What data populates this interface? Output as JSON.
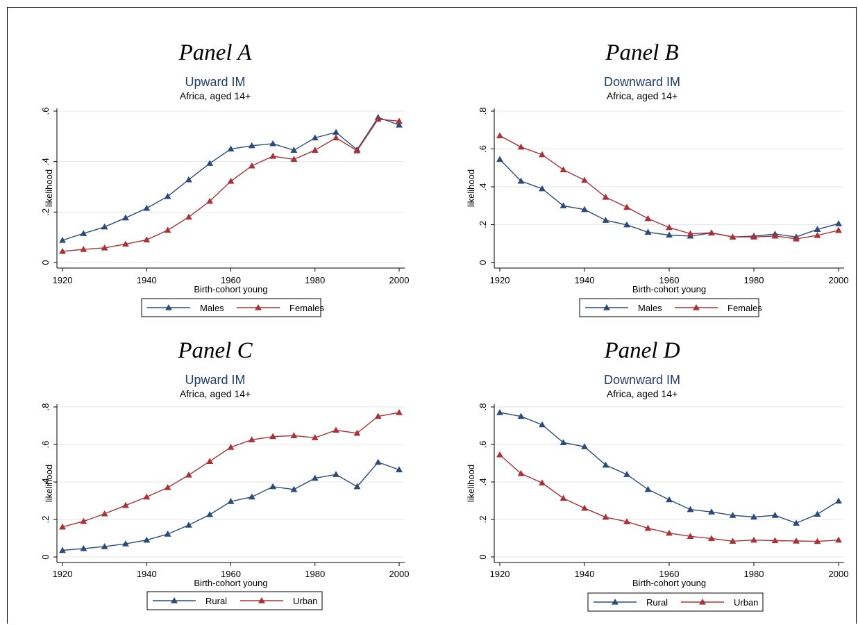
{
  "colors": {
    "blue": "#2b4b7a",
    "red": "#a83237",
    "grid": "#e1e6ee"
  },
  "chart_data": [
    {
      "type": "line",
      "panel_label": "Panel A",
      "title": "Upward IM",
      "subtitle": "Africa, aged 14+",
      "xlabel": "Birth-cohort young",
      "ylabel": "likelihood",
      "x": [
        1920,
        1925,
        1930,
        1935,
        1940,
        1945,
        1950,
        1955,
        1960,
        1965,
        1970,
        1975,
        1980,
        1985,
        1990,
        1995,
        2000
      ],
      "xticks": [
        1920,
        1940,
        1960,
        1980,
        2000
      ],
      "xtick_labels": [
        "1920",
        "1940",
        "1960",
        "1980",
        "2000"
      ],
      "ylim": [
        0,
        0.6
      ],
      "yticks": [
        0,
        0.2,
        0.4,
        0.6
      ],
      "ytick_labels": [
        "0",
        ".2",
        ".4",
        ".6"
      ],
      "grid": true,
      "legend_position": "bottom",
      "series": [
        {
          "name": "Males",
          "color": "#2b4b7a",
          "values": [
            0.088,
            0.115,
            0.141,
            0.177,
            0.215,
            0.262,
            0.328,
            0.393,
            0.45,
            0.463,
            0.471,
            0.445,
            0.494,
            0.516,
            0.447,
            0.575,
            0.545
          ]
        },
        {
          "name": "Females",
          "color": "#a83237",
          "values": [
            0.044,
            0.052,
            0.058,
            0.073,
            0.09,
            0.128,
            0.18,
            0.243,
            0.322,
            0.383,
            0.421,
            0.409,
            0.445,
            0.494,
            0.443,
            0.568,
            0.56
          ]
        }
      ]
    },
    {
      "type": "line",
      "panel_label": "Panel B",
      "title": "Downward IM",
      "subtitle": "Africa, aged 14+",
      "xlabel": "Birth-cohort young",
      "ylabel": "likelihood",
      "x": [
        1920,
        1925,
        1930,
        1935,
        1940,
        1945,
        1950,
        1955,
        1960,
        1965,
        1970,
        1975,
        1980,
        1985,
        1990,
        1995,
        2000
      ],
      "xticks": [
        1920,
        1940,
        1960,
        1980,
        2000
      ],
      "xtick_labels": [
        "1920",
        "1940",
        "1960",
        "1980",
        "2000"
      ],
      "ylim": [
        0,
        0.8
      ],
      "yticks": [
        0,
        0.2,
        0.4,
        0.6,
        0.8
      ],
      "ytick_labels": [
        "0",
        ".2",
        ".4",
        ".6",
        ".8"
      ],
      "grid": true,
      "legend_position": "bottom",
      "series": [
        {
          "name": "Males",
          "color": "#2b4b7a",
          "values": [
            0.545,
            0.43,
            0.39,
            0.3,
            0.28,
            0.223,
            0.199,
            0.16,
            0.145,
            0.14,
            0.156,
            0.135,
            0.14,
            0.15,
            0.135,
            0.175,
            0.205
          ]
        },
        {
          "name": "Females",
          "color": "#a83237",
          "values": [
            0.67,
            0.61,
            0.57,
            0.49,
            0.435,
            0.345,
            0.292,
            0.232,
            0.185,
            0.152,
            0.157,
            0.135,
            0.135,
            0.14,
            0.125,
            0.143,
            0.17
          ]
        }
      ]
    },
    {
      "type": "line",
      "panel_label": "Panel C",
      "title": "Upward IM",
      "subtitle": "Africa, aged 14+",
      "xlabel": "Birth-cohort young",
      "ylabel": "likelihood",
      "x": [
        1920,
        1925,
        1930,
        1935,
        1940,
        1945,
        1950,
        1955,
        1960,
        1965,
        1970,
        1975,
        1980,
        1985,
        1990,
        1995,
        2000
      ],
      "xticks": [
        1920,
        1940,
        1960,
        1980,
        2000
      ],
      "xtick_labels": [
        "1920",
        "1940",
        "1960",
        "1980",
        "2000"
      ],
      "ylim": [
        0,
        0.8
      ],
      "yticks": [
        0,
        0.2,
        0.4,
        0.6,
        0.8
      ],
      "ytick_labels": [
        "0",
        ".2",
        ".4",
        ".6",
        ".8"
      ],
      "grid": true,
      "legend_position": "bottom",
      "series": [
        {
          "name": "Rural",
          "color": "#2b4b7a",
          "values": [
            0.035,
            0.045,
            0.055,
            0.07,
            0.09,
            0.122,
            0.17,
            0.226,
            0.296,
            0.32,
            0.375,
            0.36,
            0.42,
            0.44,
            0.375,
            0.505,
            0.465
          ]
        },
        {
          "name": "Urban",
          "color": "#a83237",
          "values": [
            0.16,
            0.19,
            0.23,
            0.275,
            0.32,
            0.37,
            0.437,
            0.51,
            0.585,
            0.625,
            0.642,
            0.647,
            0.636,
            0.676,
            0.66,
            0.75,
            0.77
          ]
        }
      ]
    },
    {
      "type": "line",
      "panel_label": "Panel D",
      "title": "Downward IM",
      "subtitle": "Africa, aged 14+",
      "xlabel": "Birth-cohort young",
      "ylabel": "likelihood",
      "x": [
        1920,
        1925,
        1930,
        1935,
        1940,
        1945,
        1950,
        1955,
        1960,
        1965,
        1970,
        1975,
        1980,
        1985,
        1990,
        1995,
        2000
      ],
      "xticks": [
        1920,
        1940,
        1960,
        1980,
        2000
      ],
      "xtick_labels": [
        "1920",
        "1940",
        "1960",
        "1980",
        "2000"
      ],
      "ylim": [
        0,
        0.8
      ],
      "yticks": [
        0,
        0.2,
        0.4,
        0.6,
        0.8
      ],
      "ytick_labels": [
        "0",
        ".2",
        ".4",
        ".6",
        ".8"
      ],
      "grid": true,
      "legend_position": "bottom",
      "series": [
        {
          "name": "Rural",
          "color": "#2b4b7a",
          "values": [
            0.77,
            0.75,
            0.705,
            0.61,
            0.588,
            0.49,
            0.44,
            0.36,
            0.305,
            0.253,
            0.24,
            0.222,
            0.213,
            0.222,
            0.18,
            0.228,
            0.298
          ]
        },
        {
          "name": "Urban",
          "color": "#a83237",
          "values": [
            0.545,
            0.445,
            0.395,
            0.313,
            0.26,
            0.212,
            0.188,
            0.153,
            0.127,
            0.11,
            0.098,
            0.084,
            0.09,
            0.087,
            0.085,
            0.083,
            0.09
          ]
        }
      ]
    }
  ]
}
